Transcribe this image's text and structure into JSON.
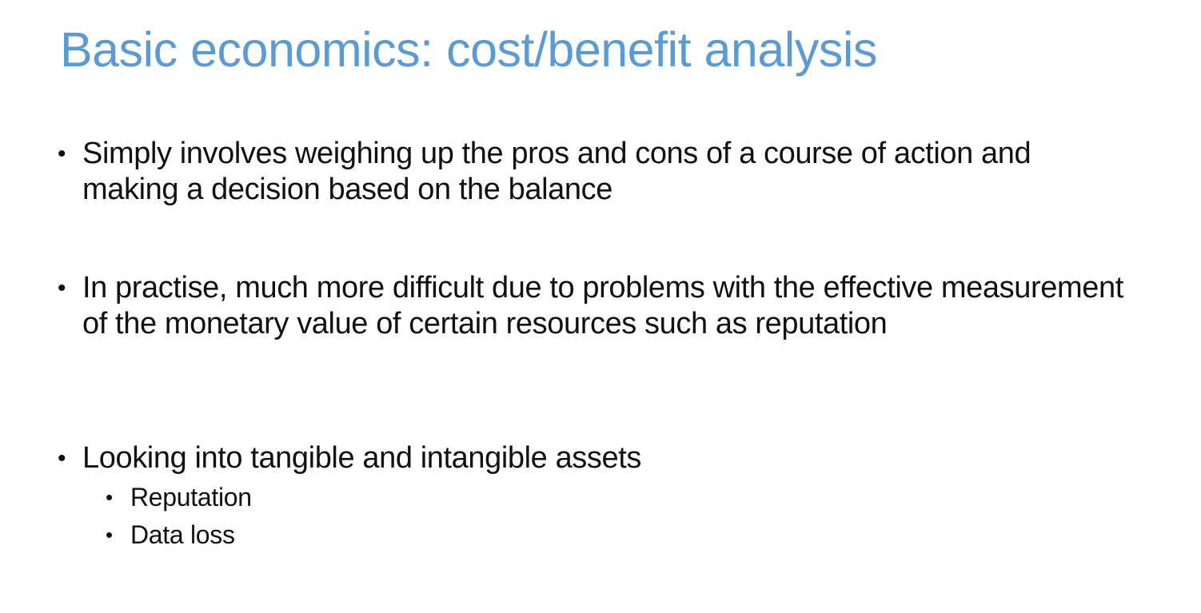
{
  "slide": {
    "title": "Basic economics: cost/benefit analysis",
    "bullet_symbol": "•",
    "bullets": [
      {
        "text": "Simply involves weighing up the pros and cons of a course of action and making a decision based on the balance"
      },
      {
        "text": "In practise, much more difficult due to problems with the effective measurement of the monetary value of certain resources such as reputation"
      },
      {
        "text": "Looking into tangible and intangible assets",
        "subitems": [
          {
            "text": "Reputation"
          },
          {
            "text": "Data loss"
          }
        ]
      }
    ],
    "colors": {
      "title": "#5b9bd5",
      "body_text": "#111111",
      "background": "#ffffff"
    }
  }
}
